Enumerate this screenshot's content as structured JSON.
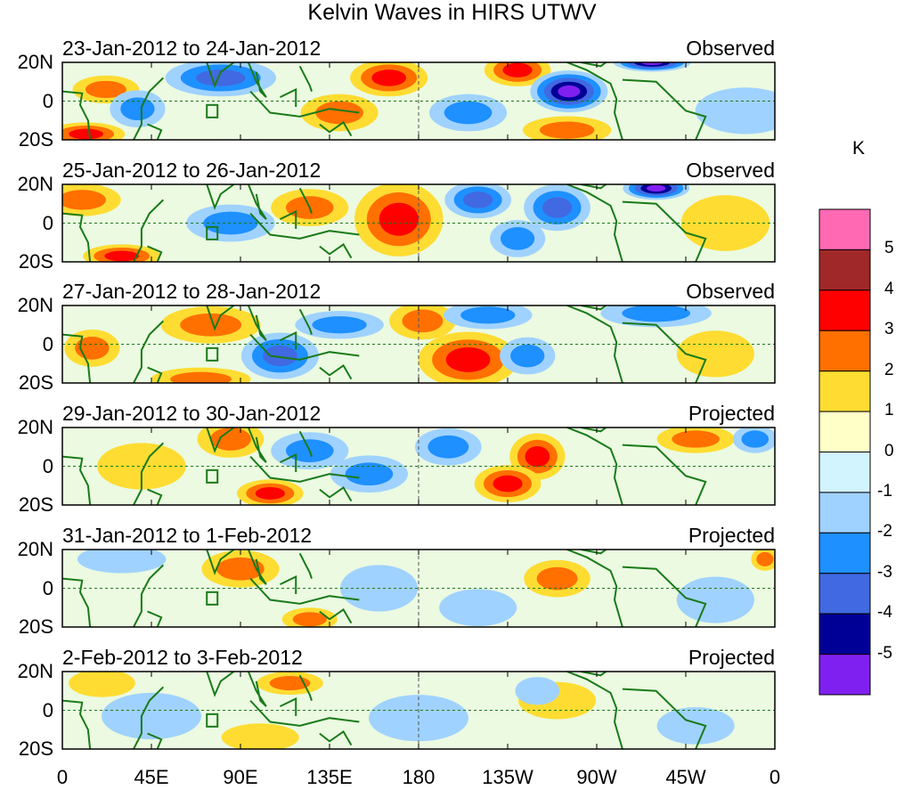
{
  "title": "Kelvin Waves in HIRS UTWV",
  "colorbar": {
    "unit": "K",
    "labels": [
      "5",
      "4",
      "3",
      "2",
      "1",
      "0",
      "-1",
      "-2",
      "-3",
      "-4",
      "-5"
    ],
    "colors": [
      "#ff69b4",
      "#a02828",
      "#ff0000",
      "#ff7000",
      "#ffdc32",
      "#ffffc8",
      "#d2f4ff",
      "#a0d2ff",
      "#1e90ff",
      "#4169e1",
      "#000096",
      "#8020f0"
    ]
  },
  "y_ticks": [
    "20N",
    "0",
    "20S"
  ],
  "x_ticks": [
    "0",
    "45E",
    "90E",
    "135E",
    "180",
    "135W",
    "90W",
    "45W",
    "0"
  ],
  "panels": [
    {
      "date": "23-Jan-2012 to 24-Jan-2012",
      "type": "Observed",
      "anomalies": [
        [
          165,
          12,
          3,
          14,
          8
        ],
        [
          230,
          16,
          3,
          12,
          7
        ],
        [
          12,
          -17,
          3,
          14,
          5
        ],
        [
          140,
          -6,
          2,
          14,
          8
        ],
        [
          255,
          -15,
          2,
          16,
          6
        ],
        [
          22,
          6,
          2,
          12,
          6
        ],
        [
          80,
          12,
          -3,
          20,
          8
        ],
        [
          256,
          5,
          -5,
          14,
          9
        ],
        [
          298,
          20,
          -5,
          14,
          4
        ],
        [
          205,
          -6,
          -2,
          14,
          8
        ],
        [
          38,
          -4,
          -2,
          10,
          8
        ],
        [
          345,
          -5,
          -1,
          18,
          10
        ]
      ]
    },
    {
      "date": "25-Jan-2012 to 26-Jan-2012",
      "type": "Observed",
      "anomalies": [
        [
          170,
          2,
          3,
          16,
          16
        ],
        [
          30,
          -17,
          3,
          14,
          5
        ],
        [
          10,
          12,
          2,
          14,
          7
        ],
        [
          125,
          8,
          2,
          14,
          8
        ],
        [
          210,
          12,
          -3,
          12,
          8
        ],
        [
          250,
          8,
          -3,
          12,
          10
        ],
        [
          300,
          18,
          -5,
          12,
          5
        ],
        [
          85,
          0,
          -2,
          16,
          8
        ],
        [
          230,
          -8,
          -2,
          10,
          8
        ],
        [
          335,
          0,
          1,
          16,
          12
        ]
      ]
    },
    {
      "date": "27-Jan-2012 to 28-Jan-2012",
      "type": "Observed",
      "anomalies": [
        [
          75,
          10,
          2,
          18,
          8
        ],
        [
          205,
          -8,
          3,
          18,
          12
        ],
        [
          182,
          12,
          2,
          12,
          8
        ],
        [
          70,
          -18,
          2,
          18,
          5
        ],
        [
          15,
          -2,
          2,
          10,
          8
        ],
        [
          110,
          -6,
          -3,
          14,
          10
        ],
        [
          235,
          -6,
          -2,
          10,
          8
        ],
        [
          215,
          15,
          -2,
          16,
          6
        ],
        [
          140,
          10,
          -2,
          16,
          6
        ],
        [
          300,
          16,
          -2,
          20,
          6
        ],
        [
          330,
          -5,
          1,
          14,
          10
        ]
      ]
    },
    {
      "date": "29-Jan-2012 to 30-Jan-2012",
      "type": "Projected",
      "anomalies": [
        [
          85,
          14,
          2,
          12,
          8
        ],
        [
          105,
          -14,
          3,
          12,
          6
        ],
        [
          240,
          5,
          3,
          10,
          10
        ],
        [
          225,
          -9,
          3,
          12,
          8
        ],
        [
          40,
          0,
          1,
          16,
          10
        ],
        [
          125,
          8,
          -2,
          14,
          8
        ],
        [
          155,
          -4,
          -2,
          14,
          8
        ],
        [
          195,
          10,
          -2,
          12,
          8
        ],
        [
          320,
          14,
          2,
          14,
          6
        ],
        [
          350,
          14,
          -2,
          8,
          6
        ]
      ]
    },
    {
      "date": "31-Jan-2012 to 1-Feb-2012",
      "type": "Projected",
      "anomalies": [
        [
          90,
          10,
          2,
          14,
          8
        ],
        [
          125,
          -16,
          2,
          10,
          5
        ],
        [
          250,
          5,
          2,
          12,
          8
        ],
        [
          30,
          15,
          -1,
          16,
          6
        ],
        [
          160,
          0,
          -1,
          14,
          10
        ],
        [
          210,
          -10,
          -1,
          14,
          8
        ],
        [
          330,
          -6,
          -1,
          14,
          10
        ],
        [
          355,
          15,
          2,
          5,
          5
        ]
      ]
    },
    {
      "date": "2-Feb-2012 to 3-Feb-2012",
      "type": "Projected",
      "anomalies": [
        [
          115,
          14,
          2,
          12,
          5
        ],
        [
          100,
          -14,
          1,
          14,
          6
        ],
        [
          250,
          5,
          1,
          14,
          8
        ],
        [
          45,
          -3,
          -1,
          18,
          10
        ],
        [
          180,
          -4,
          -1,
          18,
          10
        ],
        [
          240,
          10,
          -1,
          8,
          6
        ],
        [
          320,
          -8,
          -1,
          14,
          8
        ],
        [
          20,
          14,
          1,
          12,
          6
        ]
      ]
    }
  ]
}
